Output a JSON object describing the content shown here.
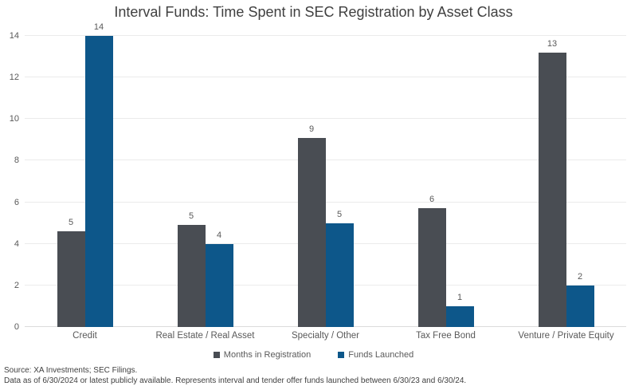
{
  "title": "Interval Funds: Time Spent in SEC Registration by Asset Class",
  "footer": {
    "line1": "Source: XA Investments; SEC Filings.",
    "line2": "Data as of 6/30/2024 or latest publicly available. Represents interval and tender offer funds launched between 6/30/23 and 6/30/24."
  },
  "colors": {
    "months_in_registration": "#494D53",
    "funds_launched": "#0D578A",
    "gridline": "#EBEBEB",
    "title_text": "#404040",
    "axis_text": "#595959"
  },
  "chart_data": {
    "type": "bar",
    "title": "Interval Funds: Time Spent in SEC Registration by Asset Class",
    "categories": [
      "Credit",
      "Real Estate / Real Asset",
      "Specialty / Other",
      "Tax Free Bond",
      "Venture / Private Equity"
    ],
    "series": [
      {
        "name": "Months in Registration",
        "color": "#494D53",
        "values": [
          4.6,
          4.9,
          9.1,
          5.7,
          13.2
        ],
        "data_labels": [
          "5",
          "5",
          "9",
          "6",
          "13"
        ]
      },
      {
        "name": "Funds Launched",
        "color": "#0D578A",
        "values": [
          14,
          4,
          5,
          1,
          2
        ],
        "data_labels": [
          "14",
          "4",
          "5",
          "1",
          "2"
        ]
      }
    ],
    "xlabel": "",
    "ylabel": "",
    "y_axis": {
      "min": 0,
      "max": 14,
      "tick_step": 2,
      "ticks": [
        "0",
        "2",
        "4",
        "6",
        "8",
        "10",
        "12",
        "14"
      ]
    },
    "grid": true,
    "legend_position": "bottom"
  }
}
